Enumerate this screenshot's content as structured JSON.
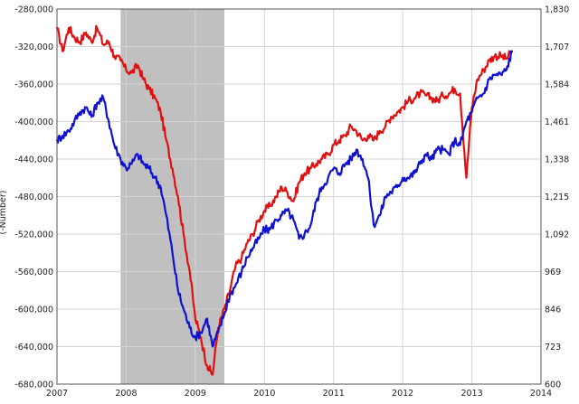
{
  "chart_data": {
    "type": "line",
    "title": "",
    "xlabel": "",
    "ylabel_left": "(-Number)",
    "ylabel_right": "",
    "xlim": [
      2007.0,
      2014.0
    ],
    "ylim_left": [
      -680000,
      -280000
    ],
    "ylim_right": [
      600,
      1830
    ],
    "x_ticks": [
      2007,
      2008,
      2009,
      2010,
      2011,
      2012,
      2013,
      2014
    ],
    "x_tick_labels": [
      "2007",
      "2008",
      "2009",
      "2010",
      "2011",
      "2012",
      "2013",
      "2014"
    ],
    "y_left_ticks": [
      -280000,
      -320000,
      -360000,
      -400000,
      -440000,
      -480000,
      -520000,
      -560000,
      -600000,
      -640000,
      -680000
    ],
    "y_left_tick_labels": [
      "-280,000",
      "-320,000",
      "-360,000",
      "-400,000",
      "-440,000",
      "-480,000",
      "-520,000",
      "-560,000",
      "-600,000",
      "-640,000",
      "-680,000"
    ],
    "y_right_ticks": [
      1830,
      1707,
      1584,
      1461,
      1338,
      1215,
      1092,
      969,
      846,
      723,
      600
    ],
    "y_right_tick_labels": [
      "1,830",
      "1,707",
      "1,584",
      "1,461",
      "1,338",
      "1,215",
      "1,092",
      "969",
      "846",
      "723",
      "600"
    ],
    "grid": true,
    "recession_shading": {
      "x_start": 2007.92,
      "x_end": 2009.42,
      "color": "#c0c0c0"
    },
    "series": [
      {
        "color": "#e01010",
        "axis": "left",
        "x": [
          2007.0,
          2007.08,
          2007.17,
          2007.25,
          2007.33,
          2007.42,
          2007.5,
          2007.58,
          2007.67,
          2007.75,
          2007.83,
          2007.92,
          2008.0,
          2008.08,
          2008.17,
          2008.25,
          2008.33,
          2008.42,
          2008.5,
          2008.58,
          2008.67,
          2008.75,
          2008.83,
          2008.92,
          2009.0,
          2009.08,
          2009.17,
          2009.25,
          2009.33,
          2009.42,
          2009.5,
          2009.58,
          2009.67,
          2009.75,
          2009.83,
          2009.92,
          2010.0,
          2010.08,
          2010.17,
          2010.25,
          2010.33,
          2010.42,
          2010.5,
          2010.58,
          2010.67,
          2010.75,
          2010.83,
          2010.92,
          2011.0,
          2011.08,
          2011.17,
          2011.25,
          2011.33,
          2011.42,
          2011.5,
          2011.58,
          2011.67,
          2011.75,
          2011.83,
          2011.92,
          2012.0,
          2012.08,
          2012.17,
          2012.25,
          2012.33,
          2012.42,
          2012.5,
          2012.58,
          2012.67,
          2012.75,
          2012.83,
          2012.92,
          2013.0,
          2013.08,
          2013.17,
          2013.25,
          2013.33,
          2013.42,
          2013.5,
          2013.58
        ],
        "y": [
          -300000,
          -325000,
          -300000,
          -310000,
          -315000,
          -305000,
          -315000,
          -300000,
          -318000,
          -315000,
          -330000,
          -335000,
          -345000,
          -348000,
          -340000,
          -355000,
          -365000,
          -375000,
          -390000,
          -420000,
          -450000,
          -480000,
          -520000,
          -560000,
          -610000,
          -630000,
          -660000,
          -670000,
          -620000,
          -600000,
          -580000,
          -555000,
          -545000,
          -530000,
          -520000,
          -505000,
          -495000,
          -490000,
          -480000,
          -470000,
          -475000,
          -485000,
          -465000,
          -455000,
          -450000,
          -445000,
          -440000,
          -435000,
          -425000,
          -420000,
          -415000,
          -405000,
          -410000,
          -420000,
          -415000,
          -420000,
          -410000,
          -405000,
          -395000,
          -390000,
          -385000,
          -378000,
          -375000,
          -370000,
          -372000,
          -375000,
          -378000,
          -372000,
          -370000,
          -365000,
          -370000,
          -460000,
          -385000,
          -355000,
          -345000,
          -335000,
          -330000,
          -330000,
          -333000,
          -325000
        ]
      },
      {
        "color": "#1010d0",
        "axis": "left",
        "x": [
          2007.0,
          2007.08,
          2007.17,
          2007.25,
          2007.33,
          2007.42,
          2007.5,
          2007.58,
          2007.67,
          2007.75,
          2007.83,
          2007.92,
          2008.0,
          2008.08,
          2008.17,
          2008.25,
          2008.33,
          2008.42,
          2008.5,
          2008.58,
          2008.67,
          2008.75,
          2008.83,
          2008.92,
          2009.0,
          2009.08,
          2009.17,
          2009.25,
          2009.33,
          2009.42,
          2009.5,
          2009.58,
          2009.67,
          2009.75,
          2009.83,
          2009.92,
          2010.0,
          2010.08,
          2010.17,
          2010.25,
          2010.33,
          2010.42,
          2010.5,
          2010.58,
          2010.67,
          2010.75,
          2010.83,
          2010.92,
          2011.0,
          2011.08,
          2011.17,
          2011.25,
          2011.33,
          2011.42,
          2011.5,
          2011.58,
          2011.67,
          2011.75,
          2011.83,
          2011.92,
          2012.0,
          2012.08,
          2012.17,
          2012.25,
          2012.33,
          2012.42,
          2012.5,
          2012.58,
          2012.67,
          2012.75,
          2012.83,
          2012.92,
          2013.0,
          2013.08,
          2013.17,
          2013.25,
          2013.33,
          2013.42,
          2013.5,
          2013.58
        ],
        "y": [
          -420000,
          -415000,
          -410000,
          -400000,
          -390000,
          -385000,
          -395000,
          -380000,
          -375000,
          -400000,
          -425000,
          -440000,
          -450000,
          -445000,
          -435000,
          -445000,
          -450000,
          -460000,
          -470000,
          -500000,
          -540000,
          -580000,
          -600000,
          -620000,
          -630000,
          -625000,
          -610000,
          -640000,
          -625000,
          -605000,
          -585000,
          -575000,
          -560000,
          -545000,
          -535000,
          -525000,
          -515000,
          -515000,
          -505000,
          -500000,
          -495000,
          -505000,
          -525000,
          -520000,
          -510000,
          -485000,
          -470000,
          -460000,
          -450000,
          -455000,
          -445000,
          -440000,
          -430000,
          -440000,
          -460000,
          -510000,
          -500000,
          -480000,
          -475000,
          -470000,
          -460000,
          -460000,
          -455000,
          -445000,
          -435000,
          -440000,
          -430000,
          -430000,
          -435000,
          -420000,
          -425000,
          -400000,
          -390000,
          -375000,
          -370000,
          -355000,
          -350000,
          -350000,
          -345000,
          -325000
        ]
      }
    ]
  }
}
